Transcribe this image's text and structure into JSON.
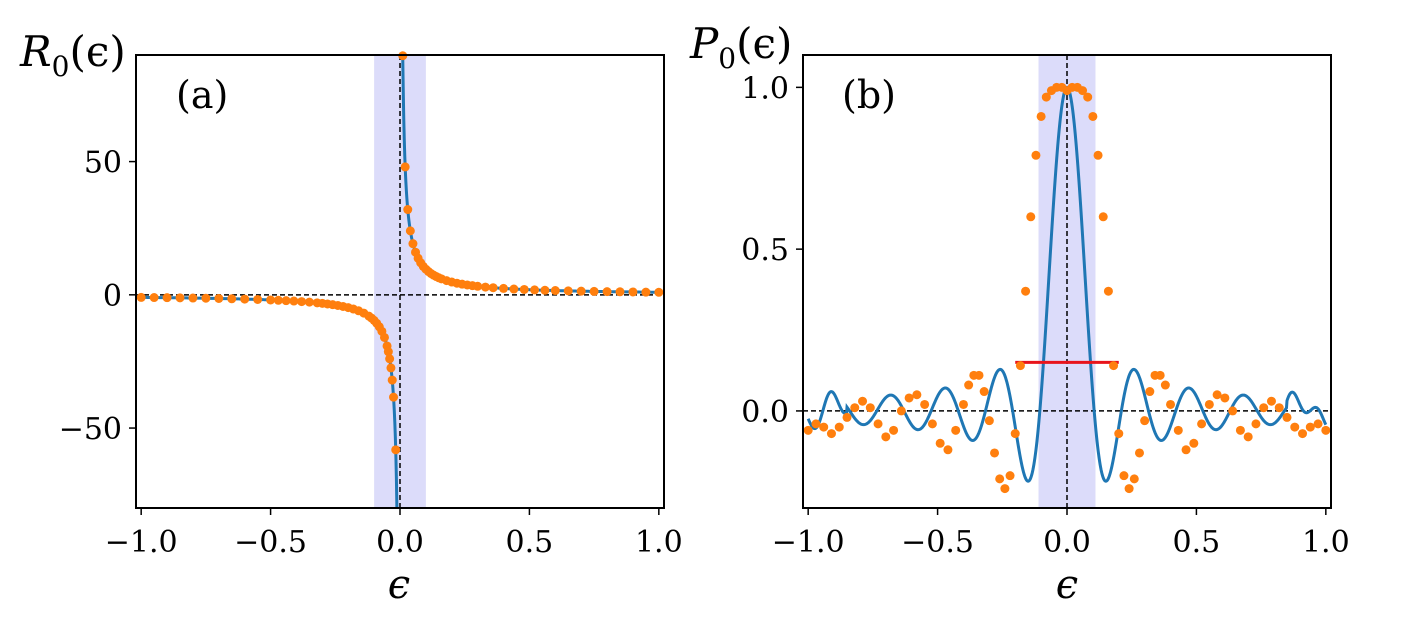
{
  "chart_data": [
    {
      "type": "line",
      "panel_label": "(a)",
      "ylabel": {
        "base": "R",
        "sub": "0",
        "arg": "(ϵ)"
      },
      "xlabel": "ϵ",
      "xlim": [
        -1.02,
        1.02
      ],
      "ylim": [
        -80,
        90
      ],
      "xticks": [
        -1.0,
        -0.5,
        0.0,
        0.5,
        1.0
      ],
      "xtick_labels": [
        "−1.0",
        "−0.5",
        "0.0",
        "0.5",
        "1.0"
      ],
      "yticks": [
        -50,
        0,
        50
      ],
      "ytick_labels": [
        "−50",
        "0",
        "50"
      ],
      "shaded_region": {
        "x": [
          -0.1,
          0.1
        ],
        "color": "#dcdcfa"
      },
      "reference_lines": {
        "x": 0,
        "y": 0,
        "style": "dashed",
        "color": "#000000"
      },
      "series": [
        {
          "name": "R0(ϵ) curve",
          "kind": "line",
          "color": "#1f77b4",
          "formula": "0.96/x"
        },
        {
          "name": "R0(ϵ) samples",
          "kind": "scatter",
          "color": "#ff7f0e",
          "x": [
            -1.0,
            -0.95,
            -0.9,
            -0.85,
            -0.8,
            -0.75,
            -0.7,
            -0.65,
            -0.6,
            -0.55,
            -0.5,
            -0.47,
            -0.44,
            -0.41,
            -0.38,
            -0.35,
            -0.32,
            -0.3,
            -0.28,
            -0.26,
            -0.24,
            -0.22,
            -0.2,
            -0.18,
            -0.16,
            -0.14,
            -0.12,
            -0.11,
            -0.1,
            -0.09,
            -0.08,
            -0.07,
            -0.06,
            -0.05,
            -0.045,
            -0.04,
            -0.035,
            -0.03,
            -0.025,
            -0.0165,
            0.0107,
            0.02,
            0.03,
            0.04,
            0.05,
            0.06,
            0.07,
            0.08,
            0.09,
            0.1,
            0.11,
            0.12,
            0.13,
            0.14,
            0.15,
            0.16,
            0.18,
            0.2,
            0.22,
            0.24,
            0.26,
            0.28,
            0.3,
            0.33,
            0.36,
            0.4,
            0.44,
            0.48,
            0.52,
            0.56,
            0.6,
            0.65,
            0.7,
            0.75,
            0.8,
            0.85,
            0.9,
            0.95,
            1.0
          ],
          "y": [
            -0.96,
            -1.01,
            -1.07,
            -1.13,
            -1.2,
            -1.28,
            -1.37,
            -1.48,
            -1.6,
            -1.75,
            -1.92,
            -2.04,
            -2.18,
            -2.34,
            -2.53,
            -2.74,
            -3.0,
            -3.2,
            -3.43,
            -3.69,
            -4.0,
            -4.36,
            -4.8,
            -5.33,
            -6.0,
            -6.86,
            -8.0,
            -8.73,
            -9.6,
            -10.67,
            -12.0,
            -13.71,
            -16.0,
            -19.2,
            -21.33,
            -24.0,
            -27.43,
            -32.0,
            -38.4,
            -58.18,
            89.72,
            48.0,
            32.0,
            24.0,
            19.2,
            16.0,
            13.71,
            12.0,
            10.67,
            9.6,
            8.73,
            8.0,
            7.38,
            6.86,
            6.4,
            6.0,
            5.33,
            4.8,
            4.36,
            4.0,
            3.69,
            3.43,
            3.2,
            2.91,
            2.67,
            2.4,
            2.18,
            2.0,
            1.85,
            1.71,
            1.6,
            1.48,
            1.37,
            1.28,
            1.2,
            1.13,
            1.07,
            1.01,
            0.96
          ]
        }
      ]
    },
    {
      "type": "line",
      "panel_label": "(b)",
      "ylabel": {
        "base": "P",
        "sub": "0",
        "arg": "(ϵ)"
      },
      "xlabel": "ϵ",
      "xlim": [
        -1.02,
        1.02
      ],
      "ylim": [
        -0.3,
        1.1
      ],
      "xticks": [
        -1.0,
        -0.5,
        0.0,
        0.5,
        1.0
      ],
      "xtick_labels": [
        "−1.0",
        "−0.5",
        "0.0",
        "0.5",
        "1.0"
      ],
      "yticks": [
        0.0,
        0.5,
        1.0
      ],
      "ytick_labels": [
        "0.0",
        "0.5",
        "1.0"
      ],
      "shaded_region": {
        "x": [
          -0.11,
          0.11
        ],
        "color": "#dcdcfa"
      },
      "reference_lines": {
        "x": 0,
        "y": 0,
        "style": "dashed",
        "color": "#000000"
      },
      "red_segment": {
        "x": [
          -0.2,
          0.2
        ],
        "y": 0.15,
        "color": "#e8141c"
      },
      "series": [
        {
          "name": "P0(ϵ) curve",
          "kind": "line",
          "color": "#1f77b4",
          "formula": "sinc(ϵ/0.11) with edge ringing"
        },
        {
          "name": "P0(ϵ) samples",
          "kind": "scatter",
          "color": "#ff7f0e",
          "x": [
            -1.0,
            -0.97,
            -0.94,
            -0.91,
            -0.88,
            -0.85,
            -0.82,
            -0.79,
            -0.76,
            -0.73,
            -0.7,
            -0.67,
            -0.64,
            -0.61,
            -0.58,
            -0.55,
            -0.52,
            -0.49,
            -0.46,
            -0.43,
            -0.4,
            -0.38,
            -0.36,
            -0.34,
            -0.32,
            -0.3,
            -0.28,
            -0.26,
            -0.24,
            -0.22,
            -0.2,
            -0.18,
            -0.16,
            -0.14,
            -0.12,
            -0.1,
            -0.08,
            -0.06,
            -0.04,
            -0.02,
            0.0,
            0.02,
            0.04,
            0.06,
            0.08,
            0.1,
            0.12,
            0.14,
            0.16,
            0.18,
            0.2,
            0.22,
            0.24,
            0.26,
            0.28,
            0.3,
            0.32,
            0.34,
            0.36,
            0.38,
            0.4,
            0.43,
            0.46,
            0.49,
            0.52,
            0.55,
            0.58,
            0.61,
            0.64,
            0.67,
            0.7,
            0.73,
            0.76,
            0.79,
            0.82,
            0.85,
            0.88,
            0.91,
            0.94,
            0.97,
            1.0
          ],
          "y": [
            -0.06,
            -0.04,
            -0.05,
            -0.07,
            -0.05,
            -0.02,
            0.01,
            0.03,
            0.01,
            -0.04,
            -0.08,
            -0.06,
            0.0,
            0.04,
            0.05,
            0.02,
            -0.04,
            -0.1,
            -0.12,
            -0.06,
            0.02,
            0.08,
            0.11,
            0.11,
            0.06,
            -0.03,
            -0.13,
            -0.21,
            -0.24,
            -0.2,
            -0.07,
            0.14,
            0.37,
            0.6,
            0.79,
            0.91,
            0.97,
            0.99,
            1.0,
            1.0,
            0.99,
            1.0,
            1.0,
            0.99,
            0.97,
            0.91,
            0.79,
            0.6,
            0.37,
            0.14,
            -0.07,
            -0.2,
            -0.24,
            -0.21,
            -0.13,
            -0.03,
            0.06,
            0.11,
            0.11,
            0.08,
            0.02,
            -0.06,
            -0.12,
            -0.1,
            -0.04,
            0.02,
            0.05,
            0.04,
            0.0,
            -0.06,
            -0.08,
            -0.04,
            0.01,
            0.03,
            0.01,
            -0.02,
            -0.05,
            -0.07,
            -0.05,
            -0.04,
            -0.06
          ]
        }
      ]
    }
  ]
}
